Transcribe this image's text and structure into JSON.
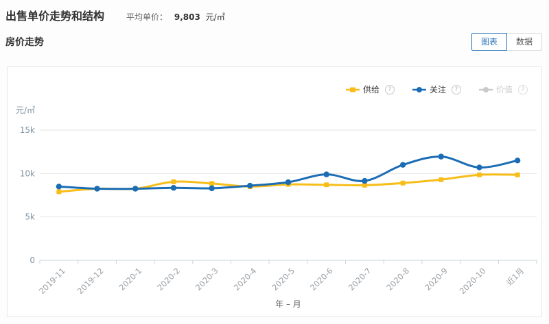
{
  "header": {
    "title": "出售单价走势和结构",
    "avg_label": "平均单价：",
    "avg_value": "9,803",
    "avg_unit": "元/㎡"
  },
  "section": {
    "title": "房价走势",
    "chart_button_label": "图表",
    "data_button_label": "数据",
    "active_view": "图表"
  },
  "ui": {
    "help_glyph": "?"
  },
  "legend": [
    {
      "label": "供给",
      "color": "#F8BD19",
      "marker": "square",
      "enabled": true
    },
    {
      "label": "关注",
      "color": "#1A6CB4",
      "marker": "circle",
      "enabled": true
    },
    {
      "label": "价值",
      "color": "#C9C9C9",
      "marker": "circle",
      "enabled": false
    }
  ],
  "chart_data": {
    "type": "line",
    "title": "房价走势",
    "xlabel": "年 – 月",
    "ylabel": "元/㎡",
    "ylim": [
      0,
      15000
    ],
    "grid": true,
    "legend_position": "top-right",
    "smooth": true,
    "yticks": [
      {
        "value": 0,
        "label": "0"
      },
      {
        "value": 5000,
        "label": "5k"
      },
      {
        "value": 10000,
        "label": "10k"
      },
      {
        "value": 15000,
        "label": "15k"
      }
    ],
    "categories": [
      "2019-11",
      "2019-12",
      "2020-1",
      "2020-2",
      "2020-3",
      "2020-4",
      "2020-5",
      "2020-6",
      "2020-7",
      "2020-8",
      "2020-9",
      "2020-10",
      "近1月"
    ],
    "series": [
      {
        "name": "供给",
        "color": "#F8BD19",
        "marker": "square",
        "values": [
          7900,
          8250,
          8250,
          9050,
          8850,
          8500,
          8750,
          8700,
          8650,
          8900,
          9300,
          9850,
          9850
        ]
      },
      {
        "name": "关注",
        "color": "#1A6CB4",
        "marker": "circle",
        "values": [
          8500,
          8250,
          8250,
          8350,
          8300,
          8600,
          9000,
          9900,
          9150,
          11000,
          11950,
          10700,
          11500
        ]
      },
      {
        "name": "价值",
        "color": "#C9C9C9",
        "marker": "circle",
        "visible": false,
        "values": []
      }
    ]
  },
  "colors": {
    "accent": "#2b74b8",
    "grid": "#e4e4e4",
    "axis": "#c9d4da",
    "y_label": "#7f93a0",
    "x_label": "#9aa0a6",
    "axis_title": "#666666"
  }
}
